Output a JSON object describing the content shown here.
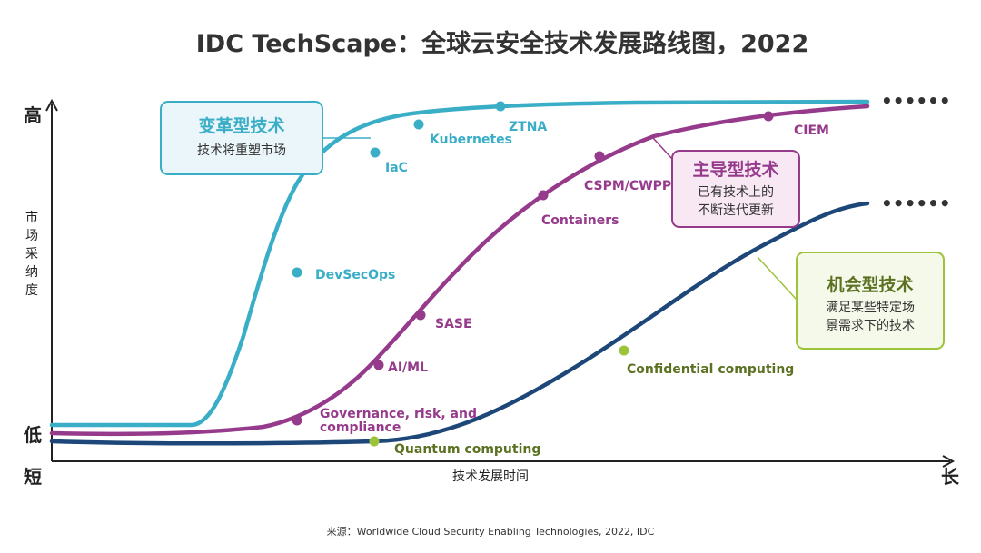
{
  "chart_data": {
    "type": "line",
    "title": "IDC TechScape：全球云安全技术发展路线图，2022",
    "xlabel": "技术发展时间",
    "ylabel": "市场采纳度",
    "x_end_labels": {
      "start": "短",
      "end": "长"
    },
    "y_end_labels": {
      "low": "低",
      "high": "高"
    },
    "continuation": "••••••",
    "source": "来源：Worldwide Cloud Security Enabling Technologies, 2022, IDC",
    "colors": {
      "transformational": "#3aaec7",
      "mainstream": "#963a8c",
      "opportunistic": "#1c4778",
      "opportunistic_dot": "#9cc33a"
    },
    "series": [
      {
        "name": "变革型技术",
        "description_lines": [
          "技术将重塑市场"
        ],
        "color": "#3aaec7",
        "points": [
          {
            "label": "DevSecOps"
          },
          {
            "label": "IaC"
          },
          {
            "label": "Kubernetes"
          },
          {
            "label": "ZTNA"
          }
        ]
      },
      {
        "name": "主导型技术",
        "description_lines": [
          "已有技术上的",
          "不断迭代更新"
        ],
        "color": "#963a8c",
        "points": [
          {
            "label_lines": [
              "Governance, risk, and",
              "compliance"
            ]
          },
          {
            "label": "AI/ML"
          },
          {
            "label": "SASE"
          },
          {
            "label": "Containers"
          },
          {
            "label": "CSPM/CWPP"
          },
          {
            "label": "CIEM"
          }
        ]
      },
      {
        "name": "机会型技术",
        "description_lines": [
          "满足某些特定场",
          "景需求下的技术"
        ],
        "color": "#1c4778",
        "points": [
          {
            "label": "Quantum computing"
          },
          {
            "label": "Confidential computing"
          }
        ]
      }
    ]
  }
}
